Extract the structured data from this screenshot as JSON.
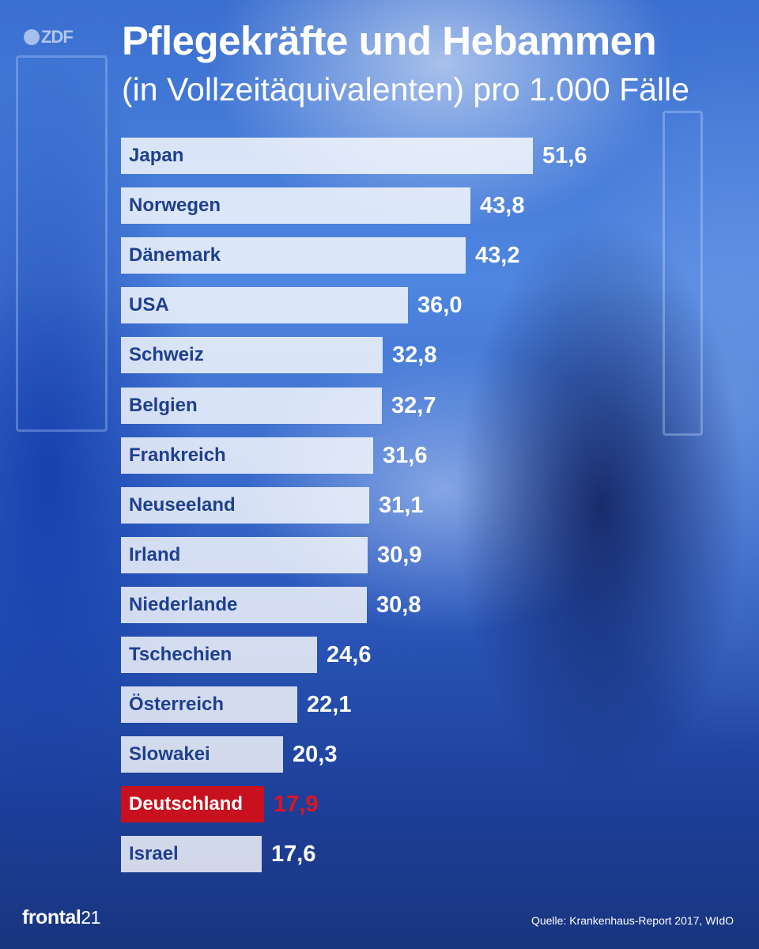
{
  "branding": {
    "top_logo": "ZDF",
    "bottom_logo_main": "frontal",
    "bottom_logo_num": "21"
  },
  "source": "Quelle: Krankenhaus-Report 2017, WIdO",
  "colors": {
    "bar": "#ffffff",
    "highlight": "#c8101e",
    "highlight_value": "#e0141e",
    "background": "#2d5cc0"
  },
  "chart_data": {
    "type": "bar",
    "orientation": "horizontal",
    "title": "Pflegekräfte und Hebammen",
    "subtitle": "(in Vollzeitäquivalenten) pro 1.000 Fälle",
    "categories": [
      "Japan",
      "Norwegen",
      "Dänemark",
      "USA",
      "Schweiz",
      "Belgien",
      "Frankreich",
      "Neuseeland",
      "Irland",
      "Niederlande",
      "Tschechien",
      "Österreich",
      "Slowakei",
      "Deutschland",
      "Israel"
    ],
    "values": [
      51.6,
      43.8,
      43.2,
      36.0,
      32.8,
      32.7,
      31.6,
      31.1,
      30.9,
      30.8,
      24.6,
      22.1,
      20.3,
      17.9,
      17.6
    ],
    "value_labels": [
      "51,6",
      "43,8",
      "43,2",
      "36,0",
      "32,8",
      "32,7",
      "31,6",
      "31,1",
      "30,9",
      "30,8",
      "24,6",
      "22,1",
      "20,3",
      "17,9",
      "17,6"
    ],
    "highlight": "Deutschland",
    "xlim": [
      0,
      51.6
    ],
    "grid": false,
    "legend": "none"
  }
}
